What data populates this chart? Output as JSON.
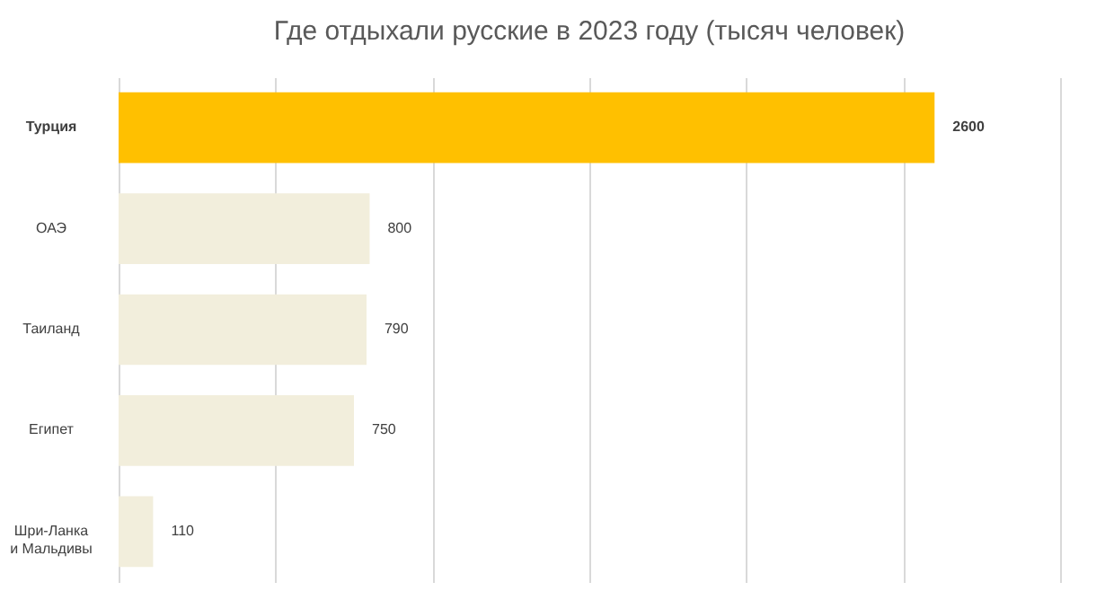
{
  "chart_data": {
    "type": "bar",
    "orientation": "horizontal",
    "title": "Где отдыхали русские в 2023 году (тысяч человек)",
    "categories": [
      "Турция",
      "ОАЭ",
      "Таиланд",
      "Египет",
      "Шри-Ланка и Мальдивы"
    ],
    "values": [
      2600,
      800,
      790,
      750,
      110
    ],
    "colors": [
      "#ffc000",
      "#f2eedc",
      "#f2eedc",
      "#f2eedc",
      "#f2eedc"
    ],
    "xlim": [
      0,
      3000
    ],
    "xticks": [
      {
        "value": 0,
        "label": null
      },
      {
        "value": 500,
        "label": null
      },
      {
        "value": 1000,
        "label": null
      },
      {
        "value": 1500,
        "label": null
      },
      {
        "value": 2000,
        "label": null
      },
      {
        "value": 2500,
        "label": null
      },
      {
        "value": 3000,
        "label": null
      }
    ],
    "grid": "x",
    "tick_labels": "y",
    "data_labels": true
  }
}
